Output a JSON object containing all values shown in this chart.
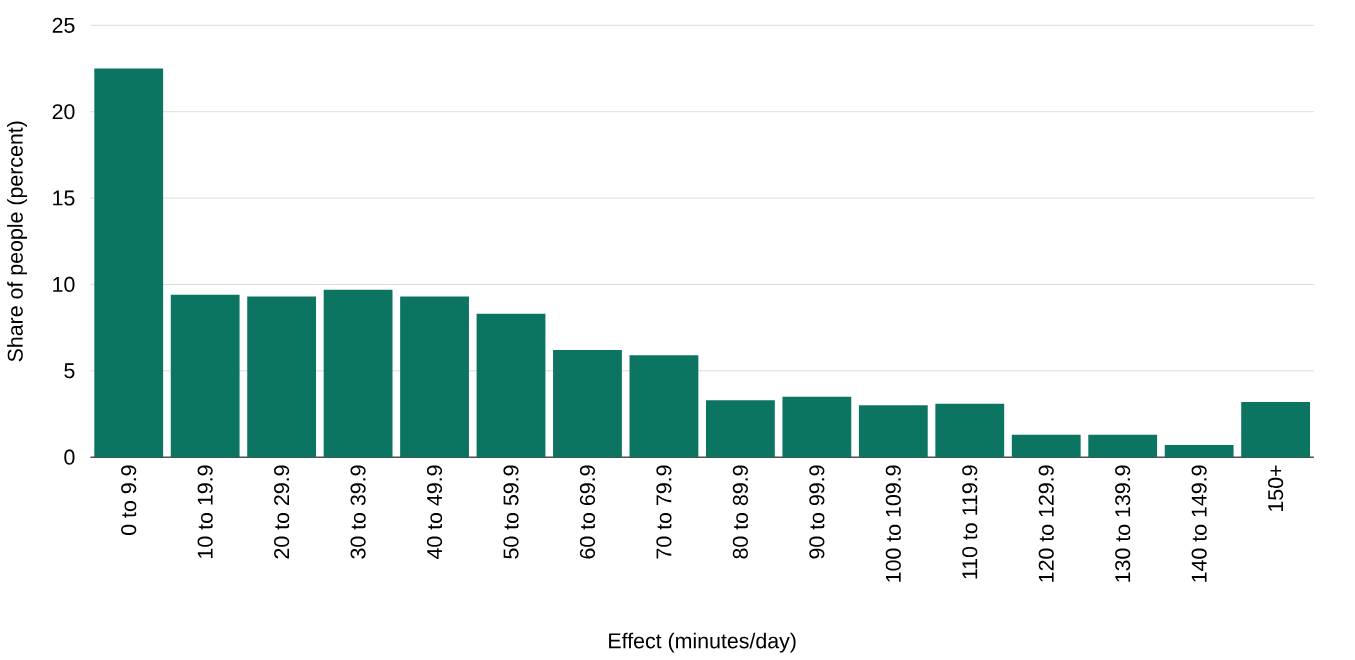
{
  "chart_data": {
    "type": "bar",
    "xlabel": "Effect (minutes/day)",
    "ylabel": "Share of people (percent)",
    "categories": [
      "0 to 9.9",
      "10 to 19.9",
      "20 to 29.9",
      "30 to 39.9",
      "40 to 49.9",
      "50 to 59.9",
      "60 to 69.9",
      "70 to 79.9",
      "80 to 89.9",
      "90 to 99.9",
      "100 to 109.9",
      "110 to 119.9",
      "120 to 129.9",
      "130 to 139.9",
      "140 to 149.9",
      "150+"
    ],
    "values": [
      22.5,
      9.4,
      9.3,
      9.7,
      9.3,
      8.3,
      6.2,
      5.9,
      3.3,
      3.5,
      3.0,
      3.1,
      1.3,
      1.3,
      0.7,
      3.2
    ],
    "color": "#0b7562",
    "ylim": [
      0,
      25
    ],
    "yticks": [
      0,
      5,
      10,
      15,
      20,
      25
    ],
    "grid": "y"
  }
}
